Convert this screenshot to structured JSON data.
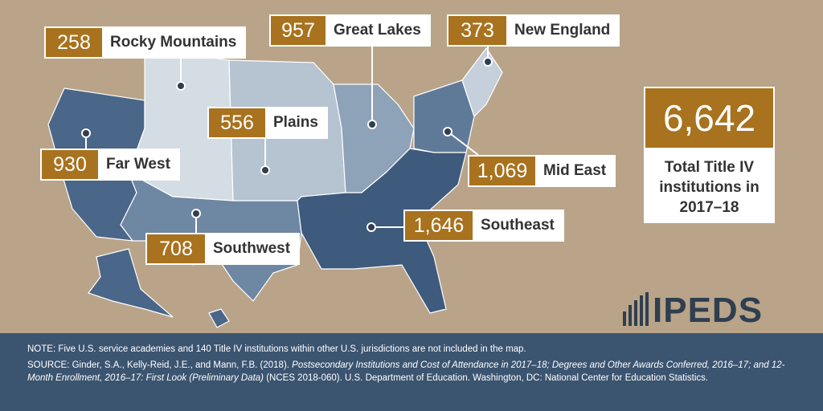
{
  "regions": [
    {
      "name": "Rocky Mountains",
      "count": "258"
    },
    {
      "name": "Great Lakes",
      "count": "957"
    },
    {
      "name": "New England",
      "count": "373"
    },
    {
      "name": "Plains",
      "count": "556"
    },
    {
      "name": "Far West",
      "count": "930"
    },
    {
      "name": "Mid East",
      "count": "1,069"
    },
    {
      "name": "Southeast",
      "count": "1,646"
    },
    {
      "name": "Southwest",
      "count": "708"
    }
  ],
  "total": {
    "count": "6,642",
    "label": "Total Title IV institutions in 2017–18"
  },
  "logo": "IPEDS",
  "note": "NOTE: Five U.S. service academies and 140 Title IV institutions within other U.S. jurisdictions are not included in the map.",
  "source": [
    "SOURCE: Ginder, S.A., Kelly-Reid, J.E., and Mann, F.B. (2018). ",
    "Postsecondary Institutions and Cost of Attendance in 2017–18; Degrees and Other Awards Conferred, 2016–17; and 12-Month Enrollment, 2016–17: First Look (Preliminary Data)",
    " (NCES 2018-060). U.S. Department of Education. Washington, DC: National Center for Education Statistics."
  ]
}
